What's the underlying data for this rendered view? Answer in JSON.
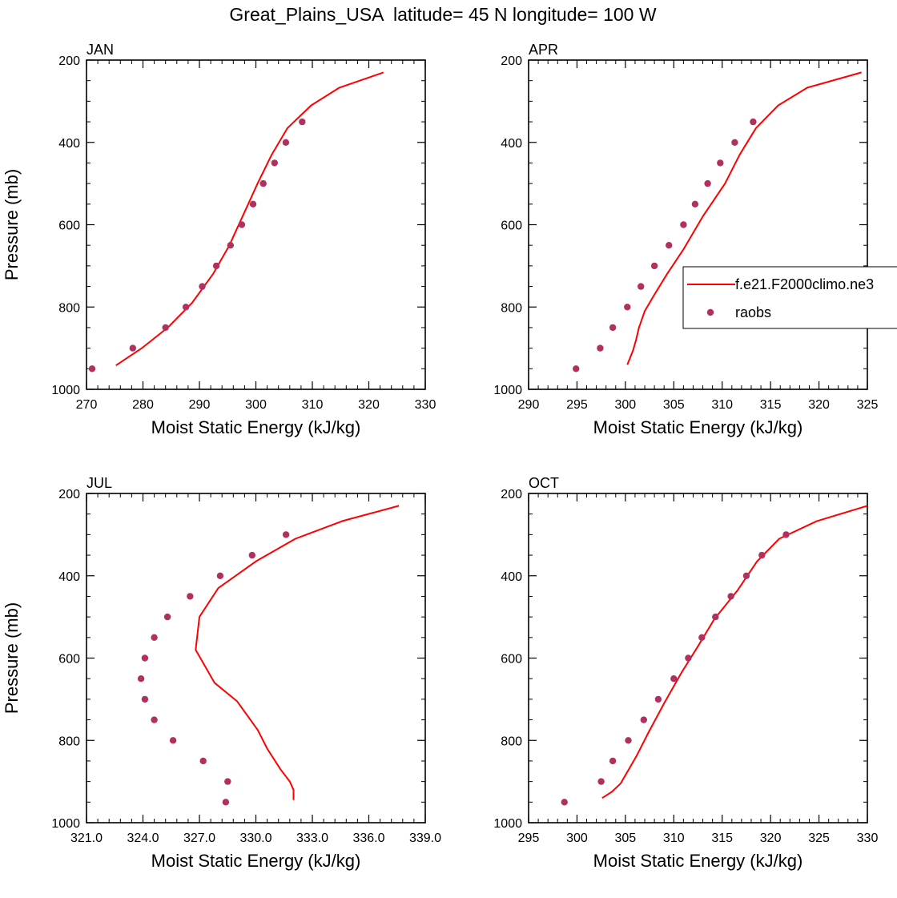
{
  "figure_title": "Great_Plains_USA  latitude= 45 N longitude= 100 W",
  "colors": {
    "model": "#ff0000",
    "obs": "#b03060"
  },
  "legend": {
    "placement": "right, mid-height, clipped at figure edge",
    "model_label": "f.e21.F2000climo.ne3",
    "obs_label": "raobs"
  },
  "chart_data": [
    {
      "type": "line",
      "panel_label": "JAN",
      "xlabel": "Moist Static Energy (kJ/kg)",
      "ylabel": "Pressure (mb)",
      "xlim": [
        270,
        330
      ],
      "ylim": [
        1000,
        200
      ],
      "y_reversed": true,
      "x_ticks": [
        270,
        280,
        290,
        300,
        310,
        320,
        330
      ],
      "x_tick_labels": [
        "270",
        "280",
        "290",
        "300",
        "310",
        "320",
        "330"
      ],
      "y_ticks": [
        200,
        400,
        600,
        800,
        1000
      ],
      "y_tick_labels": [
        "200",
        "400",
        "600",
        "800",
        "1000"
      ],
      "series": [
        {
          "kind": "line",
          "x": [
            275.2,
            279.8,
            284.4,
            288.7,
            292.4,
            295.3,
            297.8,
            300.3,
            302.8,
            305.6,
            309.8,
            314.8,
            322.6
          ],
          "y": [
            942,
            900,
            850,
            790,
            720,
            650,
            575,
            500,
            430,
            365,
            310,
            267,
            230
          ]
        },
        {
          "kind": "scatter",
          "x": [
            271.0,
            278.2,
            284.0,
            287.6,
            290.5,
            293.0,
            295.5,
            297.5,
            299.5,
            301.3,
            303.3,
            305.3,
            308.2
          ],
          "y": [
            950,
            900,
            850,
            800,
            750,
            700,
            650,
            600,
            550,
            500,
            450,
            400,
            350
          ]
        }
      ]
    },
    {
      "type": "line",
      "panel_label": "APR",
      "xlabel": "Moist Static Energy (kJ/kg)",
      "ylabel": "",
      "xlim": [
        290,
        325
      ],
      "ylim": [
        1000,
        200
      ],
      "y_reversed": true,
      "x_ticks": [
        290,
        295,
        300,
        305,
        310,
        315,
        320,
        325
      ],
      "x_tick_labels": [
        "290",
        "295",
        "300",
        "305",
        "310",
        "315",
        "320",
        "325"
      ],
      "y_ticks": [
        200,
        400,
        600,
        800,
        1000
      ],
      "y_tick_labels": [
        "200",
        "400",
        "600",
        "800",
        "1000"
      ],
      "series": [
        {
          "kind": "line",
          "x": [
            300.2,
            300.8,
            301.1,
            301.4,
            302.0,
            303.0,
            304.3,
            306.0,
            308.0,
            310.3,
            311.8,
            313.5,
            315.8,
            318.8,
            324.4
          ],
          "y": [
            940,
            905,
            880,
            850,
            810,
            770,
            720,
            660,
            580,
            500,
            430,
            365,
            310,
            267,
            230
          ]
        },
        {
          "kind": "scatter",
          "x": [
            294.9,
            297.4,
            298.7,
            300.2,
            301.6,
            303.0,
            304.5,
            306.0,
            307.2,
            308.5,
            309.8,
            311.3,
            313.2
          ],
          "y": [
            950,
            900,
            850,
            800,
            750,
            700,
            650,
            600,
            550,
            500,
            450,
            400,
            350
          ]
        }
      ]
    },
    {
      "type": "line",
      "panel_label": "JUL",
      "xlabel": "Moist Static Energy (kJ/kg)",
      "ylabel": "Pressure (mb)",
      "xlim": [
        321.0,
        339.0
      ],
      "ylim": [
        1000,
        200
      ],
      "y_reversed": true,
      "x_ticks": [
        321,
        324,
        327,
        330,
        333,
        336,
        339
      ],
      "x_tick_labels": [
        "321.0",
        "324.0",
        "327.0",
        "330.0",
        "333.0",
        "336.0",
        "339.0"
      ],
      "y_ticks": [
        200,
        400,
        600,
        800,
        1000
      ],
      "y_tick_labels": [
        "200",
        "400",
        "600",
        "800",
        "1000"
      ],
      "series": [
        {
          "kind": "line",
          "x": [
            332.0,
            332.0,
            331.8,
            331.3,
            330.6,
            330.1,
            329.0,
            327.8,
            326.8,
            327.0,
            328.0,
            330.0,
            332.1,
            334.6,
            337.6
          ],
          "y": [
            945,
            920,
            900,
            870,
            820,
            775,
            705,
            660,
            580,
            500,
            430,
            365,
            310,
            267,
            230
          ]
        },
        {
          "kind": "scatter",
          "x": [
            328.4,
            328.5,
            327.2,
            325.6,
            324.6,
            324.1,
            323.9,
            324.1,
            324.6,
            325.3,
            326.5,
            328.1,
            329.8,
            331.6
          ],
          "y": [
            950,
            900,
            850,
            800,
            750,
            700,
            650,
            600,
            550,
            500,
            450,
            400,
            350,
            300
          ]
        }
      ]
    },
    {
      "type": "line",
      "panel_label": "OCT",
      "xlabel": "Moist Static Energy (kJ/kg)",
      "ylabel": "",
      "xlim": [
        295,
        330
      ],
      "ylim": [
        1000,
        200
      ],
      "y_reversed": true,
      "x_ticks": [
        295,
        300,
        305,
        310,
        315,
        320,
        325,
        330
      ],
      "x_tick_labels": [
        "295",
        "300",
        "305",
        "310",
        "315",
        "320",
        "325",
        "330"
      ],
      "y_ticks": [
        200,
        400,
        600,
        800,
        1000
      ],
      "y_tick_labels": [
        "200",
        "400",
        "600",
        "800",
        "1000"
      ],
      "series": [
        {
          "kind": "line",
          "x": [
            302.6,
            303.6,
            304.5,
            306.1,
            307.4,
            309.0,
            310.8,
            312.4,
            314.2,
            316.6,
            318.6,
            320.9,
            324.8,
            330.0
          ],
          "y": [
            940,
            925,
            905,
            840,
            780,
            710,
            635,
            575,
            505,
            435,
            365,
            310,
            267,
            230
          ]
        },
        {
          "kind": "scatter",
          "x": [
            298.7,
            302.5,
            303.7,
            305.3,
            306.9,
            308.4,
            310.0,
            311.5,
            312.9,
            314.3,
            315.9,
            317.5,
            319.1,
            321.6
          ],
          "y": [
            950,
            900,
            850,
            800,
            750,
            700,
            650,
            600,
            550,
            500,
            450,
            400,
            350,
            300
          ]
        }
      ]
    }
  ]
}
